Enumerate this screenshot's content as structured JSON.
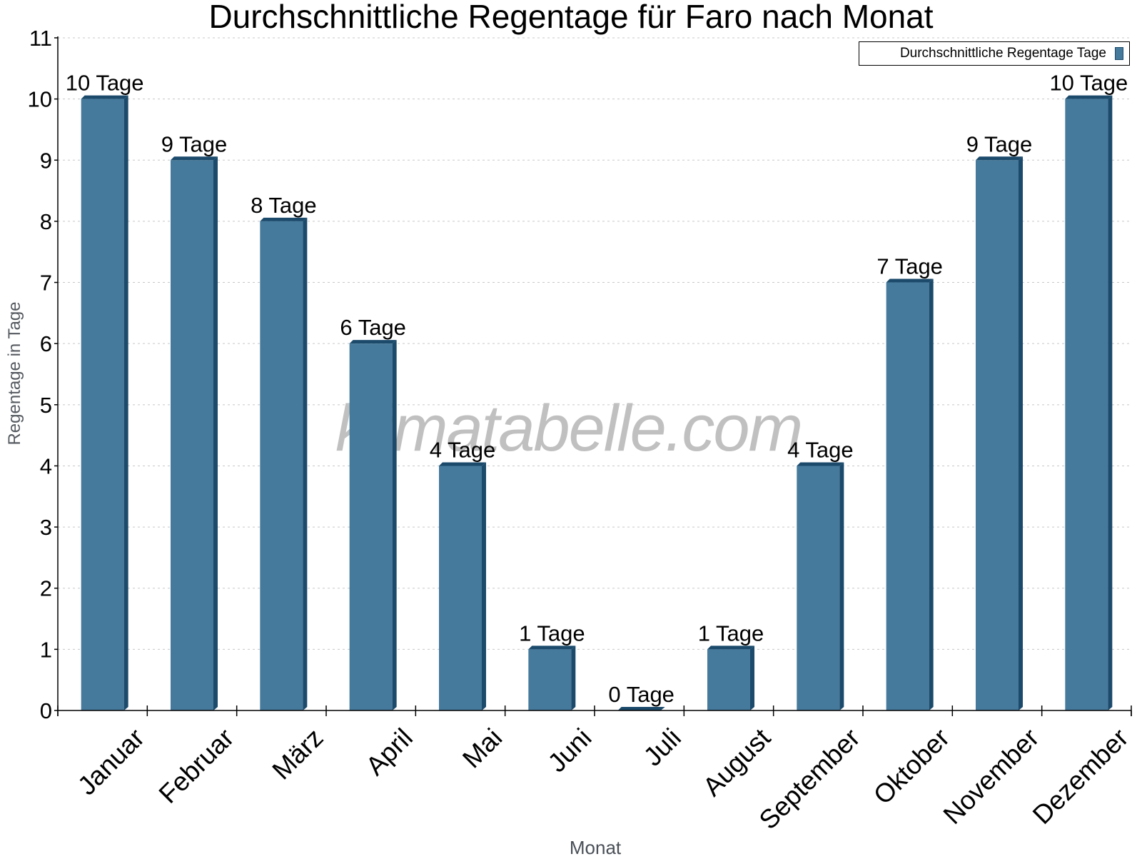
{
  "chart_data": {
    "type": "bar",
    "title": "Durchschnittliche Regentage für Faro nach Monat",
    "xlabel": "Monat",
    "ylabel": "Regentage in Tage",
    "ylim": [
      0,
      11
    ],
    "yticks": [
      0,
      1,
      2,
      3,
      4,
      5,
      6,
      7,
      8,
      9,
      10,
      11
    ],
    "grid": true,
    "legend_position": "top-right",
    "categories": [
      "Januar",
      "Februar",
      "März",
      "April",
      "Mai",
      "Juni",
      "Juli",
      "August",
      "September",
      "Oktober",
      "November",
      "Dezember"
    ],
    "series": [
      {
        "name": "Durchschnittliche Regentage Tage",
        "color": "#467a9c",
        "values": [
          10,
          9,
          8,
          6,
          4,
          1,
          0,
          1,
          4,
          7,
          9,
          10
        ],
        "data_labels": [
          "10 Tage",
          "9 Tage",
          "8 Tage",
          "6 Tage",
          "4 Tage",
          "1 Tage",
          "0 Tage",
          "1 Tage",
          "4 Tage",
          "7 Tage",
          "9 Tage",
          "10 Tage"
        ]
      }
    ],
    "watermark": "klimatabelle.com"
  },
  "legend": {
    "label": "Durchschnittliche Regentage Tage"
  },
  "colors": {
    "bar_front": "#467a9c",
    "bar_side": "#1b4a6b",
    "grid": "#c8c8c8",
    "axis": "#000000"
  }
}
